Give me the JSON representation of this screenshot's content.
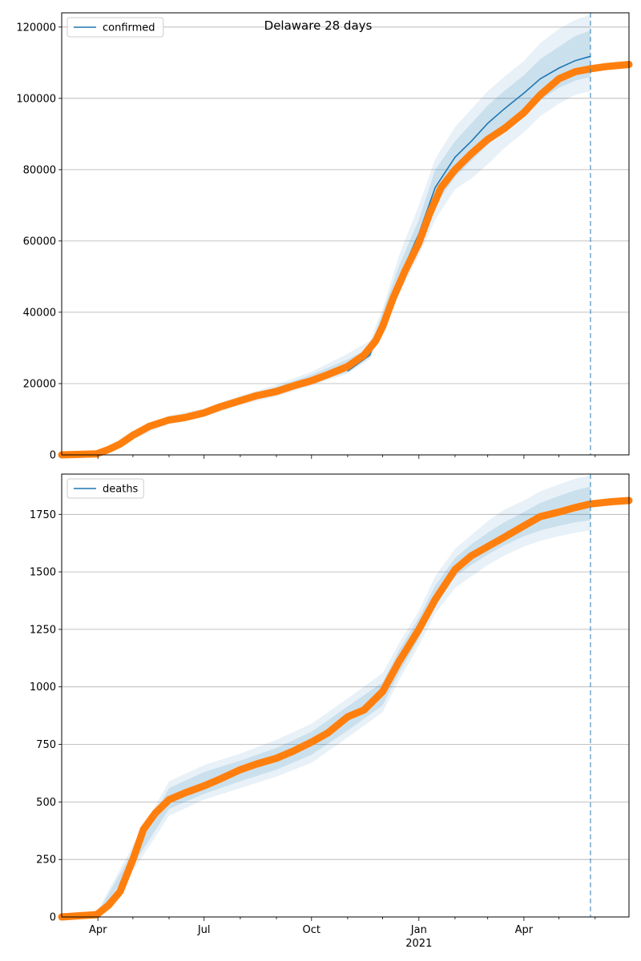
{
  "figure": {
    "title": "Delaware 28 days"
  },
  "colors": {
    "model": "#1f77b4",
    "observed": "#ff7f0e",
    "band": "#1f77b4",
    "grid": "#b0b0b0"
  },
  "chart_data": [
    {
      "type": "line",
      "legend": "confirmed",
      "legend_position": "top-left",
      "grid": "horizontal",
      "x_type": "date",
      "xlim": [
        "2020-03-01",
        "2021-06-30"
      ],
      "ylim": [
        0,
        124000
      ],
      "yticks": [
        0,
        20000,
        40000,
        60000,
        80000,
        100000,
        120000
      ],
      "forecast_start": "2021-05-28",
      "series": [
        {
          "name": "confirmed",
          "role": "model",
          "x": [
            "2020-11-01",
            "2020-11-20",
            "2020-12-01",
            "2020-12-15",
            "2021-01-01",
            "2021-01-15",
            "2021-02-01",
            "2021-02-15",
            "2021-03-01",
            "2021-03-15",
            "2021-04-01",
            "2021-04-15",
            "2021-05-01",
            "2021-05-15",
            "2021-05-28"
          ],
          "y": [
            23500,
            28000,
            38000,
            49500,
            62000,
            75000,
            83500,
            88000,
            93000,
            97000,
            101500,
            105500,
            108500,
            110600,
            111800
          ]
        },
        {
          "name": "observed",
          "role": "observed",
          "x": [
            "2020-03-01",
            "2020-03-31",
            "2020-04-10",
            "2020-04-20",
            "2020-05-01",
            "2020-05-15",
            "2020-06-01",
            "2020-06-15",
            "2020-07-01",
            "2020-07-15",
            "2020-08-01",
            "2020-08-15",
            "2020-09-01",
            "2020-09-15",
            "2020-10-01",
            "2020-10-15",
            "2020-11-01",
            "2020-11-15",
            "2020-11-25",
            "2020-12-01",
            "2020-12-10",
            "2020-12-20",
            "2021-01-01",
            "2021-01-10",
            "2021-01-20",
            "2021-02-01",
            "2021-02-15",
            "2021-03-01",
            "2021-03-15",
            "2021-04-01",
            "2021-04-15",
            "2021-05-01",
            "2021-05-15",
            "2021-05-28",
            "2021-06-10",
            "2021-06-30"
          ],
          "y": [
            0,
            300,
            1500,
            3000,
            5500,
            8000,
            9800,
            10500,
            11800,
            13500,
            15200,
            16600,
            17800,
            19300,
            20800,
            22500,
            24800,
            28000,
            32000,
            36000,
            44000,
            51500,
            59500,
            67500,
            75000,
            80000,
            84500,
            88500,
            91500,
            96000,
            101000,
            105500,
            107500,
            108300,
            108900,
            109500
          ]
        }
      ],
      "bands": [
        {
          "name": "outer",
          "x": [
            "2020-03-01",
            "2020-04-01",
            "2020-05-01",
            "2020-06-01",
            "2020-07-01",
            "2020-08-01",
            "2020-09-01",
            "2020-10-01",
            "2020-11-01",
            "2020-11-20",
            "2020-12-01",
            "2020-12-15",
            "2021-01-01",
            "2021-01-15",
            "2021-02-01",
            "2021-02-15",
            "2021-03-01",
            "2021-03-15",
            "2021-04-01",
            "2021-04-15",
            "2021-05-01",
            "2021-05-15",
            "2021-05-28"
          ],
          "low": [
            0,
            0,
            4300,
            8800,
            10600,
            14000,
            16400,
            19400,
            22800,
            26800,
            34000,
            45000,
            56000,
            66000,
            74500,
            77500,
            81500,
            86000,
            90500,
            95000,
            98500,
            101000,
            102000
          ],
          "high": [
            0,
            800,
            6600,
            11000,
            13000,
            16600,
            19700,
            23300,
            28400,
            32000,
            41000,
            56000,
            70000,
            83000,
            92000,
            97000,
            102000,
            106000,
            110500,
            115500,
            119500,
            122000,
            123500
          ]
        },
        {
          "name": "inner",
          "x": [
            "2020-03-01",
            "2020-04-01",
            "2020-05-01",
            "2020-06-01",
            "2020-07-01",
            "2020-08-01",
            "2020-09-01",
            "2020-10-01",
            "2020-11-01",
            "2020-11-20",
            "2020-12-01",
            "2020-12-15",
            "2021-01-01",
            "2021-01-15",
            "2021-02-01",
            "2021-02-15",
            "2021-03-01",
            "2021-03-15",
            "2021-04-01",
            "2021-04-15",
            "2021-05-01",
            "2021-05-15",
            "2021-05-28"
          ],
          "low": [
            0,
            100,
            4800,
            9300,
            11100,
            14600,
            17000,
            20100,
            23200,
            27400,
            35500,
            47000,
            59000,
            70000,
            78000,
            82500,
            87000,
            91000,
            95500,
            99500,
            103000,
            105000,
            106000
          ],
          "high": [
            0,
            600,
            6100,
            10500,
            12500,
            16000,
            19000,
            22500,
            26800,
            30000,
            40000,
            53000,
            66000,
            80000,
            88000,
            93000,
            98000,
            102000,
            106500,
            111000,
            114500,
            117500,
            119000
          ]
        }
      ]
    },
    {
      "type": "line",
      "legend": "deaths",
      "legend_position": "top-left",
      "grid": "horizontal",
      "x_type": "date",
      "xlim": [
        "2020-03-01",
        "2021-06-30"
      ],
      "ylim": [
        0,
        1925
      ],
      "yticks": [
        0,
        250,
        500,
        750,
        1000,
        1250,
        1500,
        1750
      ],
      "xticks": [
        {
          "date": "2020-04-01",
          "label": "Apr"
        },
        {
          "date": "2020-07-01",
          "label": "Jul"
        },
        {
          "date": "2020-10-01",
          "label": "Oct"
        },
        {
          "date": "2021-01-01",
          "label": "Jan"
        },
        {
          "date": "2021-04-01",
          "label": "Apr"
        }
      ],
      "year_label": "2021",
      "forecast_start": "2021-05-28",
      "series": [
        {
          "name": "observed",
          "role": "observed",
          "x": [
            "2020-03-01",
            "2020-03-31",
            "2020-04-10",
            "2020-04-20",
            "2020-05-01",
            "2020-05-10",
            "2020-05-20",
            "2020-06-01",
            "2020-06-15",
            "2020-07-01",
            "2020-07-15",
            "2020-08-01",
            "2020-08-15",
            "2020-09-01",
            "2020-09-15",
            "2020-10-01",
            "2020-10-15",
            "2020-11-01",
            "2020-11-15",
            "2020-12-01",
            "2020-12-15",
            "2021-01-01",
            "2021-01-15",
            "2021-02-01",
            "2021-02-15",
            "2021-03-01",
            "2021-03-15",
            "2021-04-01",
            "2021-04-15",
            "2021-05-01",
            "2021-05-15",
            "2021-05-28",
            "2021-06-15",
            "2021-06-30"
          ],
          "y": [
            0,
            10,
            50,
            110,
            250,
            380,
            450,
            510,
            540,
            570,
            600,
            640,
            665,
            690,
            720,
            760,
            800,
            870,
            900,
            980,
            1110,
            1250,
            1380,
            1510,
            1570,
            1610,
            1650,
            1700,
            1740,
            1760,
            1780,
            1795,
            1805,
            1810
          ]
        }
      ],
      "bands": [
        {
          "name": "outer",
          "x": [
            "2020-03-01",
            "2020-04-01",
            "2020-05-01",
            "2020-06-01",
            "2020-07-01",
            "2020-08-01",
            "2020-09-01",
            "2020-10-01",
            "2020-11-01",
            "2020-12-01",
            "2020-12-15",
            "2021-01-01",
            "2021-01-15",
            "2021-02-01",
            "2021-02-15",
            "2021-03-01",
            "2021-03-15",
            "2021-04-01",
            "2021-04-15",
            "2021-05-01",
            "2021-05-15",
            "2021-05-28"
          ],
          "low": [
            0,
            0,
            200,
            440,
            510,
            560,
            610,
            670,
            780,
            890,
            1030,
            1180,
            1320,
            1430,
            1480,
            1530,
            1570,
            1610,
            1635,
            1655,
            1670,
            1680
          ],
          "high": [
            0,
            30,
            310,
            590,
            660,
            710,
            770,
            840,
            950,
            1060,
            1190,
            1330,
            1480,
            1600,
            1660,
            1720,
            1770,
            1810,
            1850,
            1880,
            1905,
            1920
          ]
        },
        {
          "name": "inner",
          "x": [
            "2020-03-01",
            "2020-04-01",
            "2020-05-01",
            "2020-06-01",
            "2020-07-01",
            "2020-08-01",
            "2020-09-01",
            "2020-10-01",
            "2020-11-01",
            "2020-12-01",
            "2020-12-15",
            "2021-01-01",
            "2021-01-15",
            "2021-02-01",
            "2021-02-15",
            "2021-03-01",
            "2021-03-15",
            "2021-04-01",
            "2021-04-15",
            "2021-05-01",
            "2021-05-15",
            "2021-05-28"
          ],
          "low": [
            0,
            5,
            225,
            470,
            535,
            590,
            640,
            705,
            810,
            920,
            1060,
            1210,
            1360,
            1480,
            1530,
            1575,
            1615,
            1655,
            1680,
            1700,
            1715,
            1725
          ],
          "high": [
            0,
            20,
            285,
            560,
            630,
            680,
            735,
            805,
            915,
            1020,
            1160,
            1300,
            1440,
            1560,
            1620,
            1670,
            1715,
            1760,
            1800,
            1830,
            1855,
            1870
          ]
        }
      ]
    }
  ]
}
